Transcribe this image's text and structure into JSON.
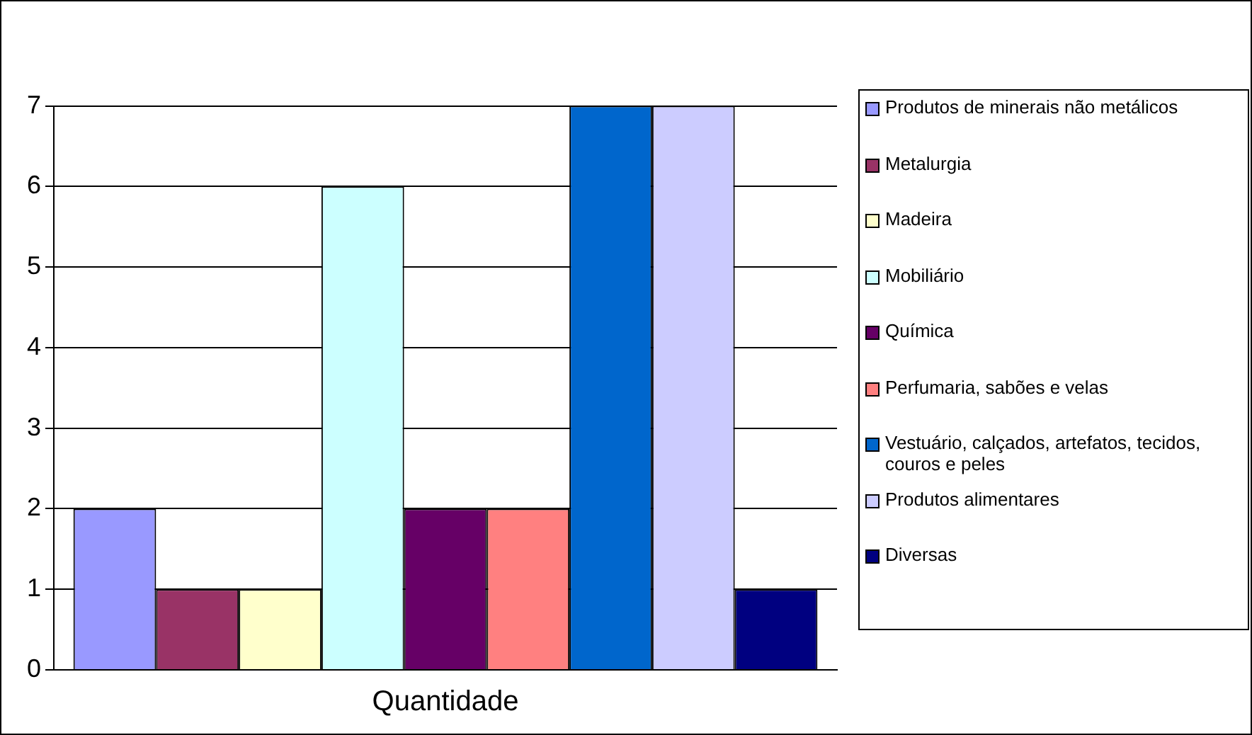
{
  "chart_data": {
    "type": "bar",
    "categories": [
      "Quantidade"
    ],
    "series": [
      {
        "name": "Produtos de minerais não metálicos",
        "color": "#9999ff",
        "values": [
          2
        ]
      },
      {
        "name": "Metalurgia",
        "color": "#993366",
        "values": [
          1
        ]
      },
      {
        "name": "Madeira",
        "color": "#ffffcc",
        "values": [
          1
        ]
      },
      {
        "name": "Mobiliário",
        "color": "#ccffff",
        "values": [
          6
        ]
      },
      {
        "name": "Química",
        "color": "#660066",
        "values": [
          2
        ]
      },
      {
        "name": "Perfumaria, sabões e velas",
        "color": "#ff8080",
        "values": [
          2
        ]
      },
      {
        "name": "Vestuário, calçados, artefatos, tecidos, couros e peles",
        "color": "#0066cc",
        "values": [
          7
        ]
      },
      {
        "name": "Produtos alimentares",
        "color": "#ccccff",
        "values": [
          7
        ]
      },
      {
        "name": "Diversas",
        "color": "#000080",
        "values": [
          1
        ]
      }
    ],
    "ylim": [
      0,
      7
    ],
    "yticks": [
      0,
      1,
      2,
      3,
      4,
      5,
      6,
      7
    ],
    "grid": "y",
    "legend": "right"
  }
}
